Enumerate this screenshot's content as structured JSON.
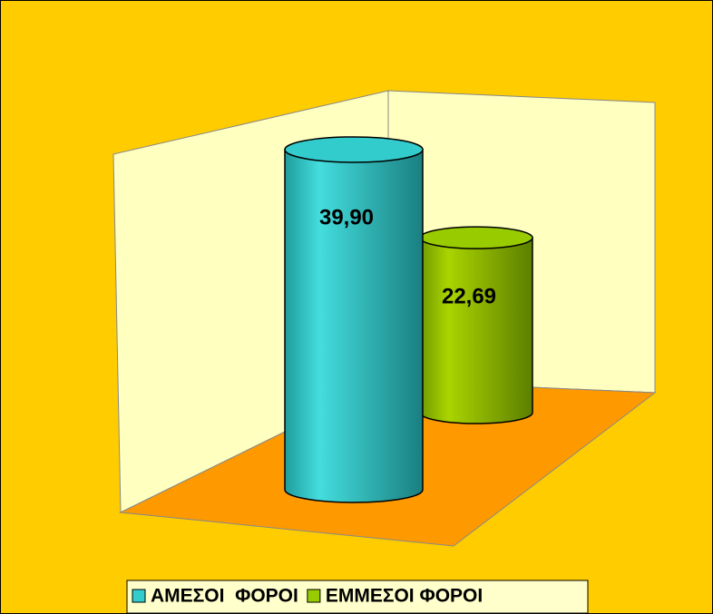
{
  "chart_data": {
    "type": "cylinder",
    "categories": [
      null
    ],
    "series": [
      {
        "name": "ΑΜΕΣΟΙ  ΦΟΡΟΙ",
        "color": "#33cccc",
        "values": [
          39.9
        ],
        "value_labels": [
          "39,90"
        ]
      },
      {
        "name": "ΕΜΜΕΣΟΙ ΦΟΡΟΙ",
        "color": "#99cc00",
        "values": [
          22.69
        ],
        "value_labels": [
          "22,69"
        ]
      }
    ],
    "legend": "bottom"
  }
}
